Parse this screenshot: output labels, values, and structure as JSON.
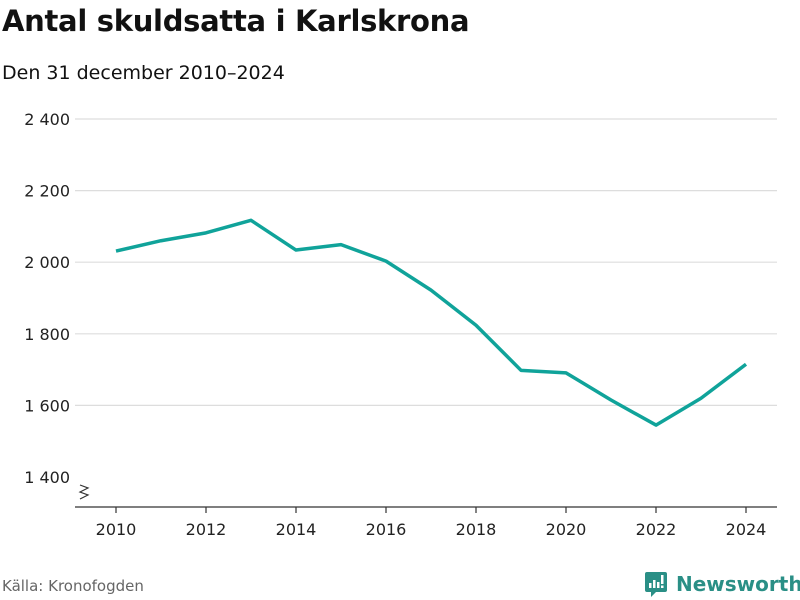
{
  "header": {
    "title": "Antal skuldsatta i Karlskrona",
    "subtitle": "Den 31 december 2010–2024"
  },
  "footer": {
    "source": "Källa: Kronofogden",
    "brand": "Newsworthy"
  },
  "colors": {
    "line": "#10a39a",
    "grid": "#dddddd",
    "brand": "#2a8f86"
  },
  "chart_data": {
    "type": "line",
    "title": "Antal skuldsatta i Karlskrona",
    "subtitle": "Den 31 december 2010–2024",
    "xlabel": "",
    "ylabel": "",
    "x": [
      2010,
      2011,
      2012,
      2013,
      2014,
      2015,
      2016,
      2017,
      2018,
      2019,
      2020,
      2021,
      2022,
      2023,
      2024
    ],
    "series": [
      {
        "name": "Antal skuldsatta",
        "values": [
          2031,
          2060,
          2082,
          2117,
          2034,
          2049,
          2003,
          1922,
          1824,
          1698,
          1691,
          1615,
          1545,
          1620,
          1715
        ]
      }
    ],
    "ylim": [
      1400,
      2400
    ],
    "yticks": [
      {
        "v": 1400,
        "label": "1 400"
      },
      {
        "v": 1600,
        "label": "1 600"
      },
      {
        "v": 1800,
        "label": "1 800"
      },
      {
        "v": 2000,
        "label": "2 000"
      },
      {
        "v": 2200,
        "label": "2 200"
      },
      {
        "v": 2400,
        "label": "2 400"
      }
    ],
    "xticks": [
      {
        "v": 2010,
        "label": "2010"
      },
      {
        "v": 2012,
        "label": "2012"
      },
      {
        "v": 2014,
        "label": "2014"
      },
      {
        "v": 2016,
        "label": "2016"
      },
      {
        "v": 2018,
        "label": "2018"
      },
      {
        "v": 2020,
        "label": "2020"
      },
      {
        "v": 2022,
        "label": "2022"
      },
      {
        "v": 2024,
        "label": "2024"
      }
    ],
    "grid": true,
    "axis_break": true,
    "legend": "none"
  }
}
